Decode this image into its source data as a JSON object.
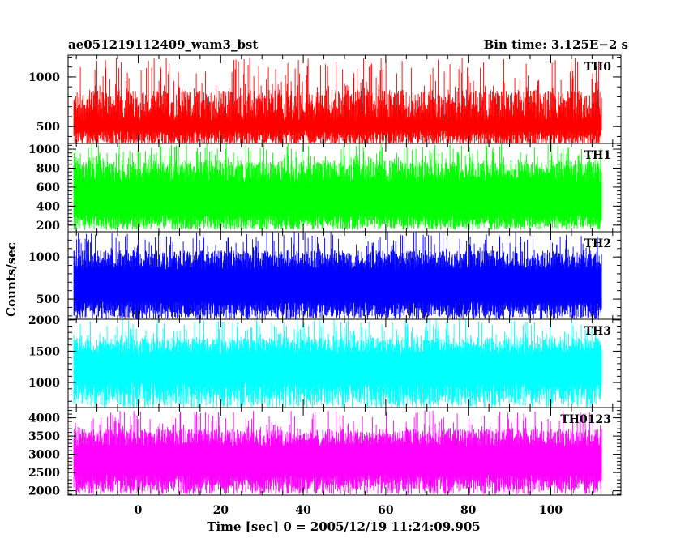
{
  "header": {
    "title": "ae051219112409_wam3_bst",
    "bin_time": "Bin time: 3.125E−2 s"
  },
  "chart_data": {
    "type": "line",
    "ylabel": "Counts/sec",
    "xlabel": "Time [sec] 0 = 2005/12/19 11:24:09.905",
    "xlim": [
      -17,
      117
    ],
    "data_x_range": [
      -15.6,
      112.4
    ],
    "x_ticks": [
      0,
      20,
      40,
      60,
      80,
      100
    ],
    "panels": [
      {
        "name": "TH0",
        "color": "#ff0000",
        "ylim": [
          330,
          1220
        ],
        "y_ticks": [
          500,
          1000
        ],
        "level": {
          "low": [
            300,
            460
          ],
          "high": [
            560,
            870
          ],
          "spike": [
            870,
            1200
          ]
        }
      },
      {
        "name": "TH1",
        "color": "#00ff00",
        "ylim": [
          130,
          1060
        ],
        "y_ticks": [
          200,
          400,
          600,
          800,
          1000
        ],
        "level": {
          "low": [
            150,
            310
          ],
          "high": [
            650,
            880
          ],
          "spike": [
            880,
            1060
          ]
        }
      },
      {
        "name": "TH2",
        "color": "#0000ff",
        "ylim": [
          260,
          1300
        ],
        "y_ticks": [
          500,
          1000
        ],
        "level": {
          "low": [
            260,
            470
          ],
          "high": [
            850,
            1080
          ],
          "spike": [
            1080,
            1300
          ]
        }
      },
      {
        "name": "TH3",
        "color": "#00ffff",
        "ylim": [
          600,
          2010
        ],
        "y_ticks": [
          1000,
          1500,
          2000
        ],
        "level": {
          "low": [
            600,
            1000
          ],
          "high": [
            1450,
            1720
          ],
          "spike": [
            1720,
            2010
          ]
        }
      },
      {
        "name": "TH0123",
        "color": "#ff00ff",
        "ylim": [
          1880,
          4280
        ],
        "y_ticks": [
          2000,
          2500,
          3000,
          3500,
          4000
        ],
        "level": {
          "low": [
            1900,
            2450
          ],
          "high": [
            3200,
            3700
          ],
          "spike": [
            3700,
            4200
          ]
        }
      }
    ]
  }
}
